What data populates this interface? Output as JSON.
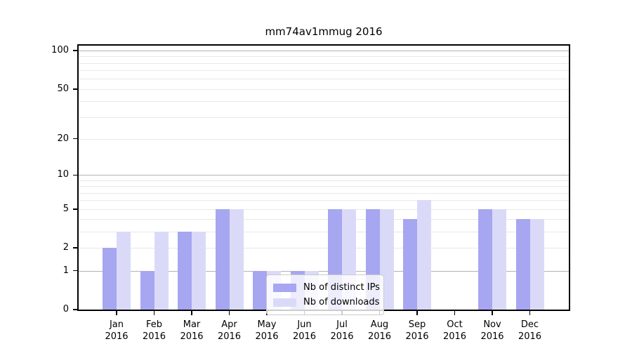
{
  "title": "mm74av1mmug 2016",
  "chart_data": {
    "type": "bar",
    "title": "mm74av1mmug 2016",
    "categories": [
      "Jan",
      "Feb",
      "Mar",
      "Apr",
      "May",
      "Jun",
      "Jul",
      "Aug",
      "Sep",
      "Oct",
      "Nov",
      "Dec"
    ],
    "x_tick_second_line": "2016",
    "series": [
      {
        "name": "Nb of distinct IPs",
        "color": "#a6a6f1",
        "values": [
          2,
          1,
          3,
          5,
          1,
          1,
          5,
          5,
          4,
          0,
          5,
          4
        ]
      },
      {
        "name": "Nb of downloads",
        "color": "#dadaf8",
        "values": [
          3,
          3,
          3,
          5,
          1,
          1,
          5,
          5,
          6,
          0,
          5,
          4
        ]
      }
    ],
    "y_axis": {
      "scale": "log10(1+value)",
      "tick_values": [
        0,
        1,
        2,
        5,
        10,
        20,
        50,
        100
      ],
      "tick_labels": [
        "0",
        "1",
        "2",
        "5",
        "10",
        "20",
        "50",
        "100"
      ],
      "major_gridlines": [
        1,
        10,
        100
      ],
      "minor_gridlines": [
        2,
        3,
        4,
        5,
        6,
        7,
        8,
        9,
        20,
        30,
        40,
        50,
        60,
        70,
        80,
        90
      ],
      "range_min": 0,
      "range_max_label": 100
    },
    "legend": {
      "entries": [
        "Nb of distinct IPs",
        "Nb of downloads"
      ],
      "position": "inside-bottom-center"
    },
    "grid": true,
    "colors": {
      "background": "#ffffff",
      "spine": "#000000",
      "major_grid": "#b3b3b3",
      "minor_grid": "#e8e8e8",
      "bar_distinct_ips": "#a6a6f1",
      "bar_downloads": "#dadaf8"
    }
  }
}
